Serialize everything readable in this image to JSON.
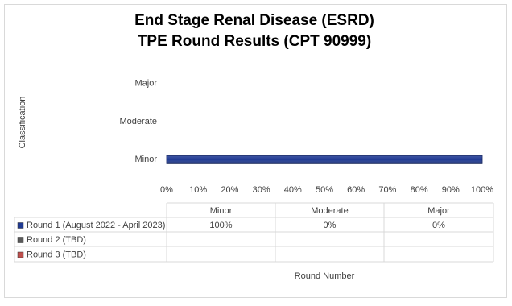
{
  "chart_data": {
    "type": "bar",
    "orientation": "horizontal",
    "title": [
      "End Stage Renal Disease (ESRD)",
      "TPE Round Results (CPT 90999)"
    ],
    "y_label": "Classification",
    "x_label": "Round Number",
    "categories": [
      "Minor",
      "Moderate",
      "Major"
    ],
    "series": [
      {
        "name": "Round 1 (August 2022 - April 2023)",
        "color": "#1f3a93",
        "values": [
          100,
          0,
          0
        ],
        "value_labels": [
          "100%",
          "0%",
          "0%"
        ]
      },
      {
        "name": "Round 2 (TBD)",
        "color": "#595959",
        "values": [
          null,
          null,
          null
        ]
      },
      {
        "name": "Round 3 (TBD)",
        "color": "#c0504d",
        "values": [
          null,
          null,
          null
        ]
      }
    ],
    "xlim": [
      0,
      100
    ],
    "xticks": [
      {
        "value": 0,
        "label": "0%"
      },
      {
        "value": 10,
        "label": "10%"
      },
      {
        "value": 20,
        "label": "20%"
      },
      {
        "value": 30,
        "label": "30%"
      },
      {
        "value": 40,
        "label": "40%"
      },
      {
        "value": 50,
        "label": "50%"
      },
      {
        "value": 60,
        "label": "60%"
      },
      {
        "value": 70,
        "label": "70%"
      },
      {
        "value": 80,
        "label": "80%"
      },
      {
        "value": 90,
        "label": "90%"
      },
      {
        "value": 100,
        "label": "100%"
      }
    ],
    "grid": false,
    "data_table": true
  }
}
